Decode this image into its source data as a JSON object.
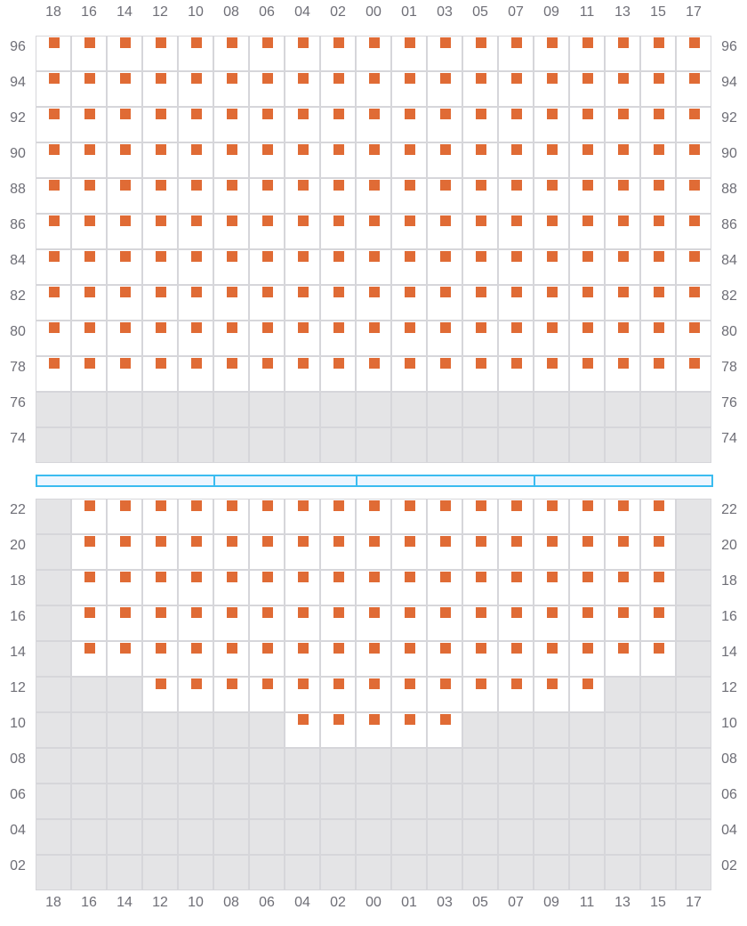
{
  "columns": [
    "18",
    "16",
    "14",
    "12",
    "10",
    "08",
    "06",
    "04",
    "02",
    "00",
    "01",
    "03",
    "05",
    "07",
    "09",
    "11",
    "13",
    "15",
    "17"
  ],
  "colors": {
    "seat_available": "#e06b35",
    "cell_open": "#ffffff",
    "cell_unavailable": "#e4e4e6",
    "stage_border": "#3bbcf0",
    "stage_fill": "#eef6ff"
  },
  "upper_section": {
    "rows": [
      {
        "label": "96",
        "seats_from": "18",
        "seats_to": "17"
      },
      {
        "label": "94",
        "seats_from": "18",
        "seats_to": "17"
      },
      {
        "label": "92",
        "seats_from": "18",
        "seats_to": "17"
      },
      {
        "label": "90",
        "seats_from": "18",
        "seats_to": "17"
      },
      {
        "label": "88",
        "seats_from": "18",
        "seats_to": "17"
      },
      {
        "label": "86",
        "seats_from": "18",
        "seats_to": "17"
      },
      {
        "label": "84",
        "seats_from": "18",
        "seats_to": "17"
      },
      {
        "label": "82",
        "seats_from": "18",
        "seats_to": "17"
      },
      {
        "label": "80",
        "seats_from": "18",
        "seats_to": "17"
      },
      {
        "label": "78",
        "seats_from": "18",
        "seats_to": "17"
      },
      {
        "label": "76",
        "seats_from": null,
        "seats_to": null
      },
      {
        "label": "74",
        "seats_from": null,
        "seats_to": null
      }
    ]
  },
  "stage": {
    "segments": 4
  },
  "lower_section": {
    "rows": [
      {
        "label": "22",
        "seats_from": "16",
        "seats_to": "15"
      },
      {
        "label": "20",
        "seats_from": "16",
        "seats_to": "15"
      },
      {
        "label": "18",
        "seats_from": "16",
        "seats_to": "15"
      },
      {
        "label": "16",
        "seats_from": "16",
        "seats_to": "15"
      },
      {
        "label": "14",
        "seats_from": "16",
        "seats_to": "15"
      },
      {
        "label": "12",
        "seats_from": "12",
        "seats_to": "11"
      },
      {
        "label": "10",
        "seats_from": "04",
        "seats_to": "03"
      },
      {
        "label": "08",
        "seats_from": null,
        "seats_to": null
      },
      {
        "label": "06",
        "seats_from": null,
        "seats_to": null
      },
      {
        "label": "04",
        "seats_from": null,
        "seats_to": null
      },
      {
        "label": "02",
        "seats_from": null,
        "seats_to": null
      }
    ]
  }
}
